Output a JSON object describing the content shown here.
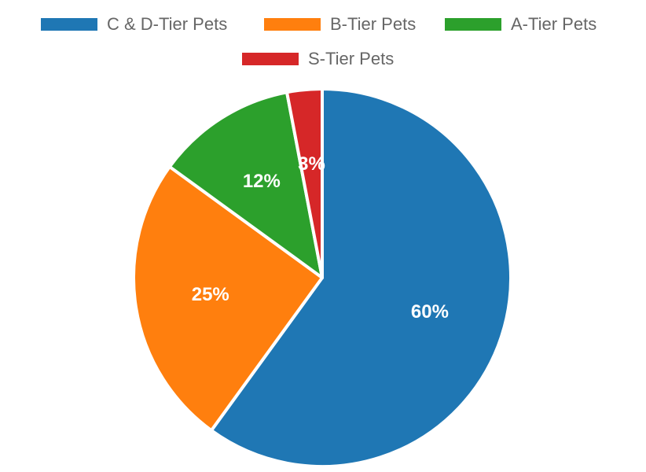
{
  "chart_data": {
    "type": "pie",
    "categories": [
      "C & D-Tier Pets",
      "B-Tier Pets",
      "A-Tier Pets",
      "S-Tier Pets"
    ],
    "values": [
      60,
      25,
      12,
      3
    ],
    "labels": [
      "60%",
      "25%",
      "12%",
      "3%"
    ],
    "colors": [
      "#1f77b4",
      "#ff7f0e",
      "#2ca02c",
      "#d62728"
    ],
    "legend_placement": "top"
  }
}
